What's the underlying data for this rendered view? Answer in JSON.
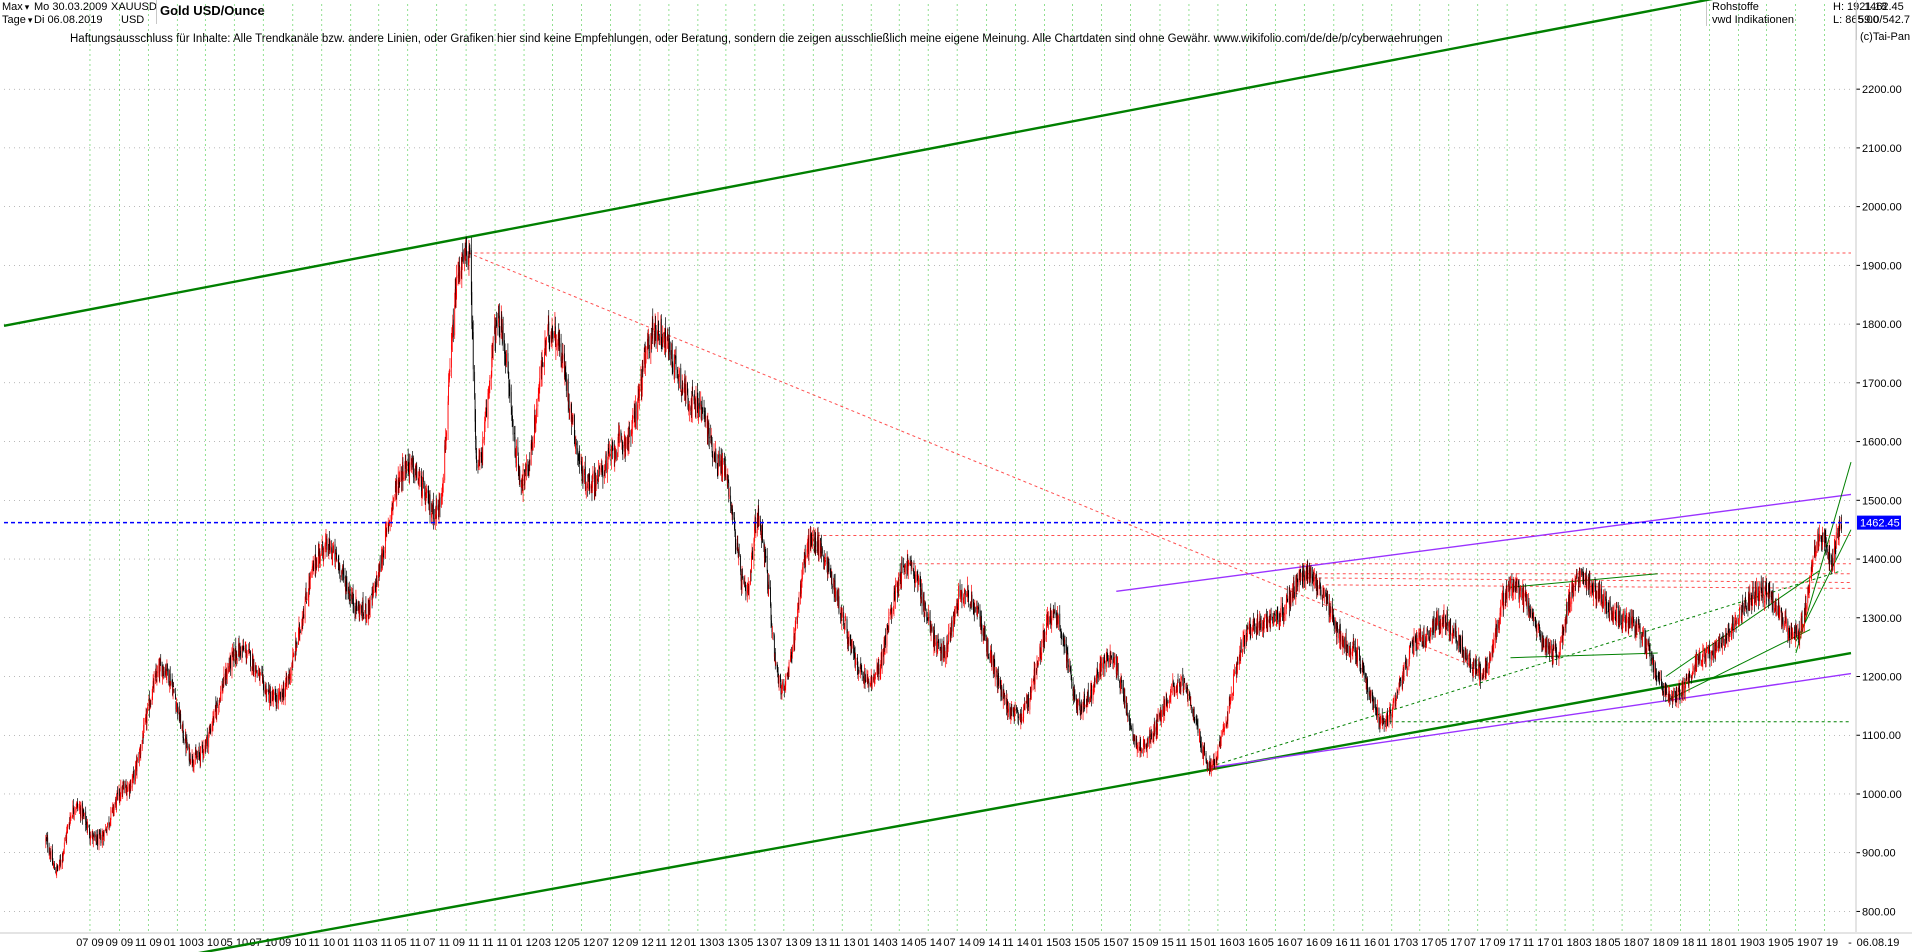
{
  "header": {
    "range_label": "Max",
    "period_label": "Tage",
    "date_from": "Mo 30.03.2009",
    "date_to": "Di 06.08.2019",
    "symbol": "XAUUSD",
    "currency": "USD",
    "title": "Gold USD/Ounce",
    "disclaimer": "Haftungsausschluss für Inhalte: Alle Trendkanäle bzw. andere Linien, oder Grafiken hier sind keine Empfehlungen, oder Beratung, sondern die zeigen ausschließlich meine eigene Meinung. Alle Chartdaten sind ohne Gewähr.  www.wikifolio.com/de/de/p/cyberwaehrungen",
    "category": "Rohstoffe",
    "source": "vwd Indikationen",
    "high_label": "H: 1921.18",
    "low_label": "L: 865.00",
    "last_price": "1462.45",
    "ratio": "59.0/542.7",
    "copyright": "(c)Tai-Pan"
  },
  "colors": {
    "bull_candle": "#ff0000",
    "bear_candle": "#000000",
    "grid": "#3cc83c",
    "main_channel": "#008000",
    "purple_lines": "#9a32ff",
    "resistance_red": "#ff5050",
    "price_line": "#0000ff"
  },
  "chart_data": {
    "type": "candlestick",
    "title": "Gold USD/Ounce",
    "symbol": "XAUUSD",
    "ylabel": "USD",
    "ylim": [
      765,
      2345
    ],
    "x_range": [
      "2009-03-30",
      "2019-08-06"
    ],
    "grid": true,
    "y_ticks": [
      "800.00",
      "900.00",
      "1000.00",
      "1100.00",
      "1200.00",
      "1300.00",
      "1400.00",
      "1500.00",
      "1600.00",
      "1700.00",
      "1800.00",
      "1900.00",
      "2000.00",
      "2100.00",
      "2200.00"
    ],
    "x_ticks": [
      "07 09",
      "09 09",
      "11 09",
      "01 10",
      "03 10",
      "05 10",
      "07 10",
      "09 10",
      "11 10",
      "01 11",
      "03 11",
      "05 11",
      "07 11",
      "09 11",
      "11 11",
      "01 12",
      "03 12",
      "05 12",
      "07 12",
      "09 12",
      "11 12",
      "01 13",
      "03 13",
      "05 13",
      "07 13",
      "09 13",
      "11 13",
      "01 14",
      "03 14",
      "05 14",
      "07 14",
      "09 14",
      "11 14",
      "01 15",
      "03 15",
      "05 15",
      "07 15",
      "09 15",
      "11 15",
      "01 16",
      "03 16",
      "05 16",
      "07 16",
      "09 16",
      "11 16",
      "01 17",
      "03 17",
      "05 17",
      "07 17",
      "09 17",
      "11 17",
      "01 18",
      "03 18",
      "05 18",
      "07 18",
      "09 18",
      "11 18",
      "01 19",
      "03 19",
      "05 19",
      "07 19"
    ],
    "x_end_label": "06.08.19",
    "x_end_marker": "-",
    "anchor_points": [
      [
        "2009-03-30",
        920
      ],
      [
        "2009-04-20",
        870
      ],
      [
        "2009-06-01",
        980
      ],
      [
        "2009-07-15",
        920
      ],
      [
        "2009-09-15",
        1010
      ],
      [
        "2009-12-02",
        1215
      ],
      [
        "2010-02-05",
        1060
      ],
      [
        "2010-05-15",
        1245
      ],
      [
        "2010-07-28",
        1160
      ],
      [
        "2010-11-09",
        1420
      ],
      [
        "2011-01-28",
        1310
      ],
      [
        "2011-05-01",
        1560
      ],
      [
        "2011-07-01",
        1480
      ],
      [
        "2011-08-22",
        1900
      ],
      [
        "2011-09-06",
        1921
      ],
      [
        "2011-09-26",
        1560
      ],
      [
        "2011-11-08",
        1800
      ],
      [
        "2011-12-29",
        1535
      ],
      [
        "2012-02-28",
        1790
      ],
      [
        "2012-05-16",
        1530
      ],
      [
        "2012-08-01",
        1600
      ],
      [
        "2012-10-04",
        1790
      ],
      [
        "2012-12-31",
        1660
      ],
      [
        "2013-02-20",
        1560
      ],
      [
        "2013-04-15",
        1340
      ],
      [
        "2013-05-06",
        1470
      ],
      [
        "2013-06-28",
        1180
      ],
      [
        "2013-08-28",
        1430
      ],
      [
        "2013-12-31",
        1190
      ],
      [
        "2014-03-17",
        1390
      ],
      [
        "2014-06-02",
        1240
      ],
      [
        "2014-07-10",
        1345
      ],
      [
        "2014-11-07",
        1130
      ],
      [
        "2015-01-22",
        1305
      ],
      [
        "2015-03-17",
        1150
      ],
      [
        "2015-05-18",
        1230
      ],
      [
        "2015-07-24",
        1080
      ],
      [
        "2015-10-14",
        1190
      ],
      [
        "2015-12-17",
        1050
      ],
      [
        "2016-03-10",
        1280
      ],
      [
        "2016-05-02",
        1300
      ],
      [
        "2016-07-06",
        1375
      ],
      [
        "2016-10-07",
        1250
      ],
      [
        "2016-12-15",
        1125
      ],
      [
        "2017-02-27",
        1260
      ],
      [
        "2017-04-17",
        1295
      ],
      [
        "2017-07-10",
        1205
      ],
      [
        "2017-09-08",
        1355
      ],
      [
        "2017-12-12",
        1240
      ],
      [
        "2018-01-25",
        1365
      ],
      [
        "2018-05-21",
        1290
      ],
      [
        "2018-08-16",
        1165
      ],
      [
        "2018-10-26",
        1240
      ],
      [
        "2019-02-20",
        1345
      ],
      [
        "2019-05-02",
        1270
      ],
      [
        "2019-06-25",
        1440
      ],
      [
        "2019-07-16",
        1400
      ],
      [
        "2019-08-06",
        1462
      ]
    ],
    "lines": [
      {
        "name": "upper-channel",
        "color": "green",
        "width": 2.4,
        "dash": "",
        "p1": [
          "2009-01-01",
          1797
        ],
        "p2": [
          "2019-07-26",
          2394
        ]
      },
      {
        "name": "lower-channel",
        "color": "green",
        "width": 2.4,
        "dash": "",
        "p1": [
          "2009-08-01",
          700
        ],
        "p2": [
          "2019-08-26",
          1240
        ]
      },
      {
        "name": "high-level",
        "color": "red",
        "width": 1,
        "dash": "3,3",
        "p1": [
          "2011-09-06",
          1921
        ],
        "p2": [
          "2019-08-26",
          1921
        ]
      },
      {
        "name": "down-trend",
        "color": "red",
        "width": 1,
        "dash": "3,3",
        "p1": [
          "2011-09-06",
          1921
        ],
        "p2": [
          "2017-06-15",
          1220
        ]
      },
      {
        "name": "price-line",
        "color": "blue",
        "width": 1.5,
        "dash": "4,3",
        "p1": [
          "2009-01-01",
          1462
        ],
        "p2": [
          "2019-08-26",
          1462
        ]
      },
      {
        "name": "resistance-1440",
        "color": "red",
        "width": 1,
        "dash": "3,3",
        "p1": [
          "2013-08-28",
          1440
        ],
        "p2": [
          "2019-08-26",
          1440
        ]
      },
      {
        "name": "resistance-1392",
        "color": "red",
        "width": 1,
        "dash": "3,3",
        "p1": [
          "2014-03-17",
          1392
        ],
        "p2": [
          "2019-08-26",
          1392
        ]
      },
      {
        "name": "resistance-1375",
        "color": "red",
        "width": 1,
        "dash": "3,3",
        "p1": [
          "2016-07-06",
          1375
        ],
        "p2": [
          "2019-08-26",
          1375
        ]
      },
      {
        "name": "resistance-1365",
        "color": "red",
        "width": 1,
        "dash": "3,3",
        "p1": [
          "2016-07-06",
          1368
        ],
        "p2": [
          "2019-08-26",
          1360
        ]
      },
      {
        "name": "resistance-1355",
        "color": "red",
        "width": 1,
        "dash": "3,3",
        "p1": [
          "2016-08-15",
          1356
        ],
        "p2": [
          "2019-08-26",
          1350
        ]
      },
      {
        "name": "support-1123",
        "color": "green",
        "width": 1,
        "dash": "3,3",
        "p1": [
          "2016-12-15",
          1123
        ],
        "p2": [
          "2019-08-26",
          1123
        ]
      },
      {
        "name": "support-dotted",
        "color": "green",
        "width": 1,
        "dash": "3,3",
        "p1": [
          "2015-12-17",
          1047
        ],
        "p2": [
          "2019-08-06",
          1380
        ]
      },
      {
        "name": "purple-upper",
        "color": "purple",
        "width": 1.4,
        "dash": "",
        "p1": [
          "2015-06-01",
          1345
        ],
        "p2": [
          "2019-08-26",
          1510
        ]
      },
      {
        "name": "purple-lower",
        "color": "purple",
        "width": 1.4,
        "dash": "",
        "p1": [
          "2015-12-17",
          1045
        ],
        "p2": [
          "2019-08-26",
          1205
        ]
      },
      {
        "name": "triangle-top",
        "color": "green",
        "width": 1,
        "dash": "",
        "p1": [
          "2017-09-08",
          1352
        ],
        "p2": [
          "2018-07-15",
          1375
        ]
      },
      {
        "name": "triangle-bottom",
        "color": "green",
        "width": 1,
        "dash": "",
        "p1": [
          "2017-09-08",
          1232
        ],
        "p2": [
          "2018-07-15",
          1240
        ]
      },
      {
        "name": "channel-2018-low",
        "color": "green",
        "width": 1,
        "dash": "",
        "p1": [
          "2018-08-01",
          1158
        ],
        "p2": [
          "2019-06-01",
          1280
        ]
      },
      {
        "name": "channel-2018-high",
        "color": "green",
        "width": 1,
        "dash": "",
        "p1": [
          "2018-08-01",
          1200
        ],
        "p2": [
          "2019-06-20",
          1380
        ]
      },
      {
        "name": "steep-up-1",
        "color": "green",
        "width": 1,
        "dash": "",
        "p1": [
          "2019-05-02",
          1240
        ],
        "p2": [
          "2019-08-26",
          1565
        ]
      },
      {
        "name": "steep-up-2",
        "color": "green",
        "width": 1,
        "dash": "",
        "p1": [
          "2019-05-02",
          1260
        ],
        "p2": [
          "2019-08-26",
          1450
        ]
      }
    ]
  }
}
